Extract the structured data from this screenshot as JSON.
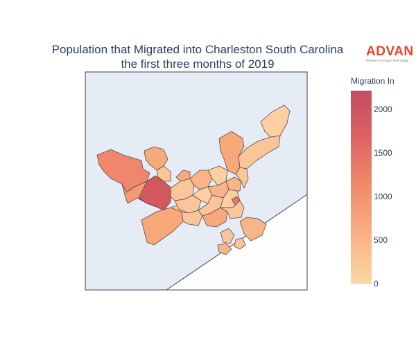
{
  "title": {
    "line1": "Population that Migrated into Charleston South Carolina",
    "line2": "the first three months of 2019"
  },
  "logo": {
    "word": "ADVAN",
    "tagline": "Research through Technology",
    "color": "#e0482a"
  },
  "colorbar": {
    "title": "Migration In",
    "ticks": [
      "2000",
      "1500",
      "1000",
      "500",
      "0"
    ],
    "range": [
      0,
      2200
    ],
    "colors": [
      "#fbd8a4",
      "#f9b185",
      "#f08c6a",
      "#dd6363",
      "#c14e62"
    ]
  },
  "map": {
    "background": "#e5ecf6",
    "ocean": "#fdfdfe",
    "border": "#444444"
  }
}
